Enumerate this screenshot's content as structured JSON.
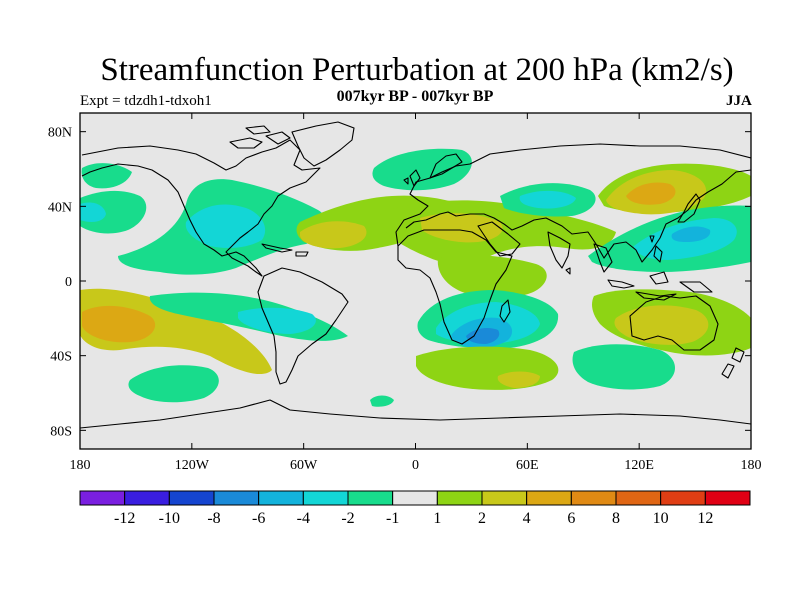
{
  "title": "Streamfunction Perturbation at 200 hPa (km2/s)",
  "subtitle": "007kyr BP - 007kyr BP",
  "experiment_label": "Expt = tdzdh1-tdxoh1",
  "season": "JJA",
  "chart_data": {
    "type": "heatmap",
    "title": "Streamfunction Perturbation at 200 hPa (km2/s)",
    "variable": "200 hPa streamfunction perturbation",
    "units": "km2/s",
    "x_axis": {
      "range": [
        180,
        540
      ],
      "ticks": [
        180,
        240,
        300,
        360,
        420,
        480,
        540
      ],
      "tick_labels": [
        "180",
        "120W",
        "60W",
        "0",
        "60E",
        "120E",
        "180"
      ]
    },
    "y_axis": {
      "range": [
        -90,
        90
      ],
      "ticks": [
        80,
        40,
        0,
        -40,
        -80
      ],
      "tick_labels": [
        "80N",
        "40N",
        "0",
        "40S",
        "80S"
      ]
    },
    "colorbar": {
      "levels": [
        -12,
        -10,
        -8,
        -6,
        -4,
        -2,
        -1,
        1,
        2,
        4,
        6,
        8,
        10,
        12
      ],
      "tick_labels": [
        "-12",
        "-10",
        "-8",
        "-6",
        "-4",
        "-2",
        "-1",
        "1",
        "2",
        "4",
        "6",
        "8",
        "10",
        "12"
      ],
      "colors": [
        "#7a1fe0",
        "#3a1ee0",
        "#1545d0",
        "#1a8ad8",
        "#13b3dc",
        "#13d6d6",
        "#18dc8c",
        "#e6e6e6",
        "#8ed414",
        "#c8c81a",
        "#dca814",
        "#e08a14",
        "#e06614",
        "#e03e14",
        "#e00014"
      ]
    },
    "features": [
      {
        "name": "positive center, subtropical South Pacific",
        "lon": -145,
        "lat": -22,
        "value_class": 6
      },
      {
        "name": "positive center, East Asia / Japan",
        "lon": 125,
        "lat": 44,
        "value_class": 6
      },
      {
        "name": "negative center, off South Africa",
        "lon": 40,
        "lat": -30,
        "value_class": -6
      },
      {
        "name": "negative center, northwest Pacific",
        "lon": 140,
        "lat": 28,
        "value_class": -4
      },
      {
        "name": "negative band, North Atlantic / Caribbean",
        "lon": -80,
        "lat": 25,
        "value_class": -2
      },
      {
        "name": "negative center, northern Europe",
        "lon": 15,
        "lat": 55,
        "value_class": -2
      },
      {
        "name": "positive band, North Atlantic to Middle East",
        "lon": 0,
        "lat": 30,
        "value_class": 4
      },
      {
        "name": "positive center, Australia",
        "lon": 135,
        "lat": -25,
        "value_class": 4
      },
      {
        "name": "positive region, southern Indian Ocean",
        "lon": 50,
        "lat": -52,
        "value_class": 4
      },
      {
        "name": "negative band, South Pacific to South Atlantic",
        "lon": -60,
        "lat": -25,
        "value_class": -2
      },
      {
        "name": "negative center, South Pacific high latitudes",
        "lon": -135,
        "lat": -55,
        "value_class": -1
      }
    ]
  }
}
